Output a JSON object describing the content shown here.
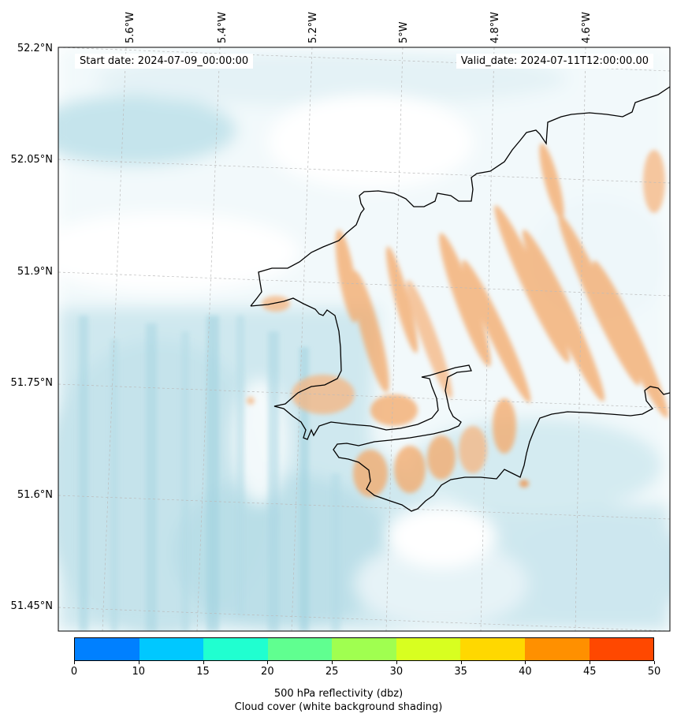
{
  "map": {
    "start_label": "Start date: 2024-07-09_00:00:00",
    "valid_label": "Valid_date: 2024-07-11T12:00:00.00",
    "lon_labels": [
      "5.6°W",
      "5.4°W",
      "5.2°W",
      "5°W",
      "4.8°W",
      "4.6°W"
    ],
    "lat_labels": [
      "52.2°N",
      "52.05°N",
      "51.9°N",
      "51.75°N",
      "51.6°N",
      "51.45°N"
    ],
    "colorbar": {
      "ticks": [
        "0",
        "10",
        "15",
        "20",
        "25",
        "30",
        "35",
        "40",
        "45",
        "50"
      ],
      "colors": [
        "#0080ff",
        "#00c8ff",
        "#20ffd0",
        "#60ff90",
        "#a0ff50",
        "#d8ff20",
        "#ffd800",
        "#ff9000",
        "#ff4800"
      ],
      "label_line1": "500 hPa reflectivity (dbz)",
      "label_line2": "Cloud cover (white background shading)"
    },
    "colors": {
      "cloud": "#a9d6e2",
      "reflectivity": "#f4a868",
      "coast": "#000000",
      "grid": "#bbbbbb"
    }
  }
}
